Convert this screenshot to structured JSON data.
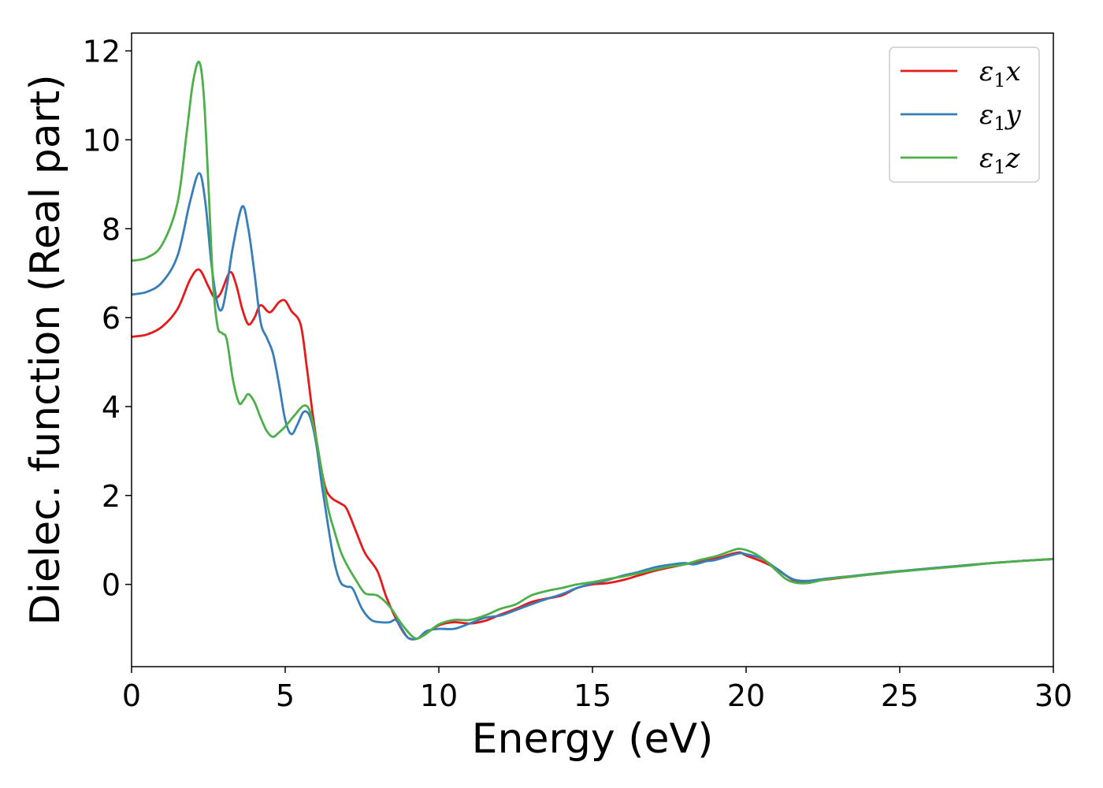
{
  "chart_data": {
    "type": "line",
    "title": "",
    "xlabel": "Energy (eV)",
    "ylabel": "Dielec. function (Real part)",
    "xlim": [
      0,
      30
    ],
    "ylim": [
      -1.85,
      12.4
    ],
    "xticks": [
      0,
      5,
      10,
      15,
      20,
      25,
      30
    ],
    "yticks": [
      0,
      2,
      4,
      6,
      8,
      10,
      12
    ],
    "grid": false,
    "legend_position": "top-right",
    "series": [
      {
        "name": "ε1x",
        "legend_symbol": "ε",
        "legend_sub": "1",
        "legend_suffix": "x",
        "color": "#e41a1c",
        "points": [
          [
            0,
            5.57
          ],
          [
            0.5,
            5.62
          ],
          [
            1.0,
            5.8
          ],
          [
            1.5,
            6.2
          ],
          [
            1.9,
            6.85
          ],
          [
            2.2,
            7.08
          ],
          [
            2.5,
            6.7
          ],
          [
            2.7,
            6.45
          ],
          [
            2.9,
            6.55
          ],
          [
            3.2,
            7.02
          ],
          [
            3.4,
            6.75
          ],
          [
            3.6,
            6.2
          ],
          [
            3.8,
            5.85
          ],
          [
            4.0,
            6.0
          ],
          [
            4.2,
            6.28
          ],
          [
            4.5,
            6.12
          ],
          [
            4.8,
            6.35
          ],
          [
            5.0,
            6.38
          ],
          [
            5.2,
            6.15
          ],
          [
            5.5,
            5.85
          ],
          [
            5.7,
            4.9
          ],
          [
            5.9,
            3.8
          ],
          [
            6.1,
            2.9
          ],
          [
            6.3,
            2.2
          ],
          [
            6.5,
            1.95
          ],
          [
            6.8,
            1.82
          ],
          [
            7.0,
            1.7
          ],
          [
            7.3,
            1.2
          ],
          [
            7.6,
            0.7
          ],
          [
            8.0,
            0.3
          ],
          [
            8.3,
            -0.3
          ],
          [
            8.7,
            -0.9
          ],
          [
            9.0,
            -1.2
          ],
          [
            9.3,
            -1.22
          ],
          [
            9.6,
            -1.1
          ],
          [
            10.0,
            -0.92
          ],
          [
            10.5,
            -0.85
          ],
          [
            11.0,
            -0.88
          ],
          [
            11.5,
            -0.82
          ],
          [
            12.0,
            -0.68
          ],
          [
            12.5,
            -0.55
          ],
          [
            13.0,
            -0.4
          ],
          [
            13.5,
            -0.32
          ],
          [
            14.0,
            -0.25
          ],
          [
            14.5,
            -0.08
          ],
          [
            15.0,
            0.0
          ],
          [
            15.5,
            0.03
          ],
          [
            16.0,
            0.1
          ],
          [
            16.5,
            0.2
          ],
          [
            17.0,
            0.3
          ],
          [
            17.5,
            0.38
          ],
          [
            18.0,
            0.45
          ],
          [
            18.5,
            0.52
          ],
          [
            19.0,
            0.58
          ],
          [
            19.5,
            0.68
          ],
          [
            19.8,
            0.72
          ],
          [
            20.0,
            0.65
          ],
          [
            20.5,
            0.52
          ],
          [
            21.0,
            0.35
          ],
          [
            21.3,
            0.2
          ],
          [
            21.6,
            0.08
          ],
          [
            22.0,
            0.05
          ],
          [
            22.5,
            0.1
          ],
          [
            23.0,
            0.14
          ],
          [
            23.5,
            0.18
          ],
          [
            24.0,
            0.22
          ],
          [
            25.0,
            0.29
          ],
          [
            26.0,
            0.36
          ],
          [
            27.0,
            0.42
          ],
          [
            28.0,
            0.48
          ],
          [
            29.0,
            0.53
          ],
          [
            30.0,
            0.57
          ]
        ]
      },
      {
        "name": "ε1y",
        "legend_symbol": "ε",
        "legend_sub": "1",
        "legend_suffix": "y",
        "color": "#377eb8",
        "points": [
          [
            0,
            6.52
          ],
          [
            0.5,
            6.58
          ],
          [
            1.0,
            6.8
          ],
          [
            1.5,
            7.4
          ],
          [
            1.9,
            8.6
          ],
          [
            2.2,
            9.25
          ],
          [
            2.4,
            8.6
          ],
          [
            2.6,
            7.2
          ],
          [
            2.8,
            6.3
          ],
          [
            2.95,
            6.2
          ],
          [
            3.1,
            6.7
          ],
          [
            3.3,
            7.6
          ],
          [
            3.6,
            8.5
          ],
          [
            3.8,
            8.0
          ],
          [
            4.0,
            7.0
          ],
          [
            4.2,
            5.9
          ],
          [
            4.4,
            5.55
          ],
          [
            4.6,
            5.2
          ],
          [
            4.8,
            4.5
          ],
          [
            5.0,
            3.7
          ],
          [
            5.2,
            3.38
          ],
          [
            5.4,
            3.6
          ],
          [
            5.6,
            3.88
          ],
          [
            5.8,
            3.78
          ],
          [
            6.0,
            3.2
          ],
          [
            6.2,
            2.2
          ],
          [
            6.4,
            1.3
          ],
          [
            6.6,
            0.5
          ],
          [
            6.8,
            0.05
          ],
          [
            7.0,
            -0.05
          ],
          [
            7.2,
            -0.1
          ],
          [
            7.5,
            -0.55
          ],
          [
            7.8,
            -0.8
          ],
          [
            8.1,
            -0.85
          ],
          [
            8.4,
            -0.85
          ],
          [
            8.6,
            -0.8
          ],
          [
            8.8,
            -1.0
          ],
          [
            9.0,
            -1.2
          ],
          [
            9.3,
            -1.22
          ],
          [
            9.6,
            -1.05
          ],
          [
            10.0,
            -1.0
          ],
          [
            10.5,
            -1.0
          ],
          [
            11.0,
            -0.88
          ],
          [
            11.5,
            -0.75
          ],
          [
            12.0,
            -0.7
          ],
          [
            12.5,
            -0.58
          ],
          [
            13.0,
            -0.45
          ],
          [
            13.5,
            -0.33
          ],
          [
            14.0,
            -0.22
          ],
          [
            14.5,
            -0.08
          ],
          [
            15.0,
            0.02
          ],
          [
            15.5,
            0.1
          ],
          [
            16.0,
            0.2
          ],
          [
            16.5,
            0.28
          ],
          [
            17.0,
            0.38
          ],
          [
            17.5,
            0.44
          ],
          [
            18.0,
            0.48
          ],
          [
            18.3,
            0.45
          ],
          [
            18.7,
            0.52
          ],
          [
            19.0,
            0.55
          ],
          [
            19.5,
            0.65
          ],
          [
            19.8,
            0.7
          ],
          [
            20.0,
            0.68
          ],
          [
            20.5,
            0.58
          ],
          [
            21.0,
            0.35
          ],
          [
            21.3,
            0.2
          ],
          [
            21.6,
            0.1
          ],
          [
            22.0,
            0.08
          ],
          [
            22.5,
            0.12
          ],
          [
            23.0,
            0.16
          ],
          [
            23.5,
            0.19
          ],
          [
            24.0,
            0.23
          ],
          [
            25.0,
            0.3
          ],
          [
            26.0,
            0.36
          ],
          [
            27.0,
            0.42
          ],
          [
            28.0,
            0.48
          ],
          [
            29.0,
            0.53
          ],
          [
            30.0,
            0.57
          ]
        ]
      },
      {
        "name": "ε1z",
        "legend_symbol": "ε",
        "legend_sub": "1",
        "legend_suffix": "z",
        "color": "#4daf4a",
        "points": [
          [
            0,
            7.28
          ],
          [
            0.5,
            7.35
          ],
          [
            1.0,
            7.65
          ],
          [
            1.5,
            8.6
          ],
          [
            1.8,
            10.2
          ],
          [
            2.0,
            11.3
          ],
          [
            2.2,
            11.75
          ],
          [
            2.35,
            11.0
          ],
          [
            2.5,
            9.0
          ],
          [
            2.65,
            6.8
          ],
          [
            2.8,
            5.8
          ],
          [
            2.95,
            5.65
          ],
          [
            3.1,
            5.5
          ],
          [
            3.3,
            4.6
          ],
          [
            3.5,
            4.08
          ],
          [
            3.65,
            4.15
          ],
          [
            3.8,
            4.28
          ],
          [
            4.0,
            4.1
          ],
          [
            4.2,
            3.75
          ],
          [
            4.4,
            3.45
          ],
          [
            4.6,
            3.32
          ],
          [
            4.8,
            3.42
          ],
          [
            5.0,
            3.55
          ],
          [
            5.3,
            3.8
          ],
          [
            5.6,
            4.02
          ],
          [
            5.8,
            3.9
          ],
          [
            6.0,
            3.3
          ],
          [
            6.2,
            2.5
          ],
          [
            6.4,
            1.7
          ],
          [
            6.6,
            1.2
          ],
          [
            6.8,
            0.75
          ],
          [
            7.0,
            0.45
          ],
          [
            7.3,
            0.1
          ],
          [
            7.6,
            -0.2
          ],
          [
            8.0,
            -0.25
          ],
          [
            8.4,
            -0.5
          ],
          [
            8.8,
            -0.9
          ],
          [
            9.2,
            -1.2
          ],
          [
            9.5,
            -1.15
          ],
          [
            10.0,
            -0.9
          ],
          [
            10.5,
            -0.8
          ],
          [
            11.0,
            -0.8
          ],
          [
            11.5,
            -0.7
          ],
          [
            12.0,
            -0.55
          ],
          [
            12.5,
            -0.45
          ],
          [
            13.0,
            -0.25
          ],
          [
            13.5,
            -0.15
          ],
          [
            14.0,
            -0.08
          ],
          [
            14.5,
            0.0
          ],
          [
            15.0,
            0.05
          ],
          [
            15.5,
            0.12
          ],
          [
            16.0,
            0.18
          ],
          [
            16.5,
            0.25
          ],
          [
            17.0,
            0.33
          ],
          [
            17.5,
            0.4
          ],
          [
            18.0,
            0.45
          ],
          [
            18.5,
            0.55
          ],
          [
            19.0,
            0.63
          ],
          [
            19.5,
            0.75
          ],
          [
            19.8,
            0.8
          ],
          [
            20.2,
            0.72
          ],
          [
            20.6,
            0.55
          ],
          [
            21.0,
            0.3
          ],
          [
            21.3,
            0.12
          ],
          [
            21.6,
            0.04
          ],
          [
            22.0,
            0.03
          ],
          [
            22.5,
            0.1
          ],
          [
            23.0,
            0.15
          ],
          [
            23.5,
            0.18
          ],
          [
            24.0,
            0.22
          ],
          [
            25.0,
            0.29
          ],
          [
            26.0,
            0.35
          ],
          [
            27.0,
            0.41
          ],
          [
            28.0,
            0.48
          ],
          [
            29.0,
            0.53
          ],
          [
            30.0,
            0.57
          ]
        ]
      }
    ]
  }
}
